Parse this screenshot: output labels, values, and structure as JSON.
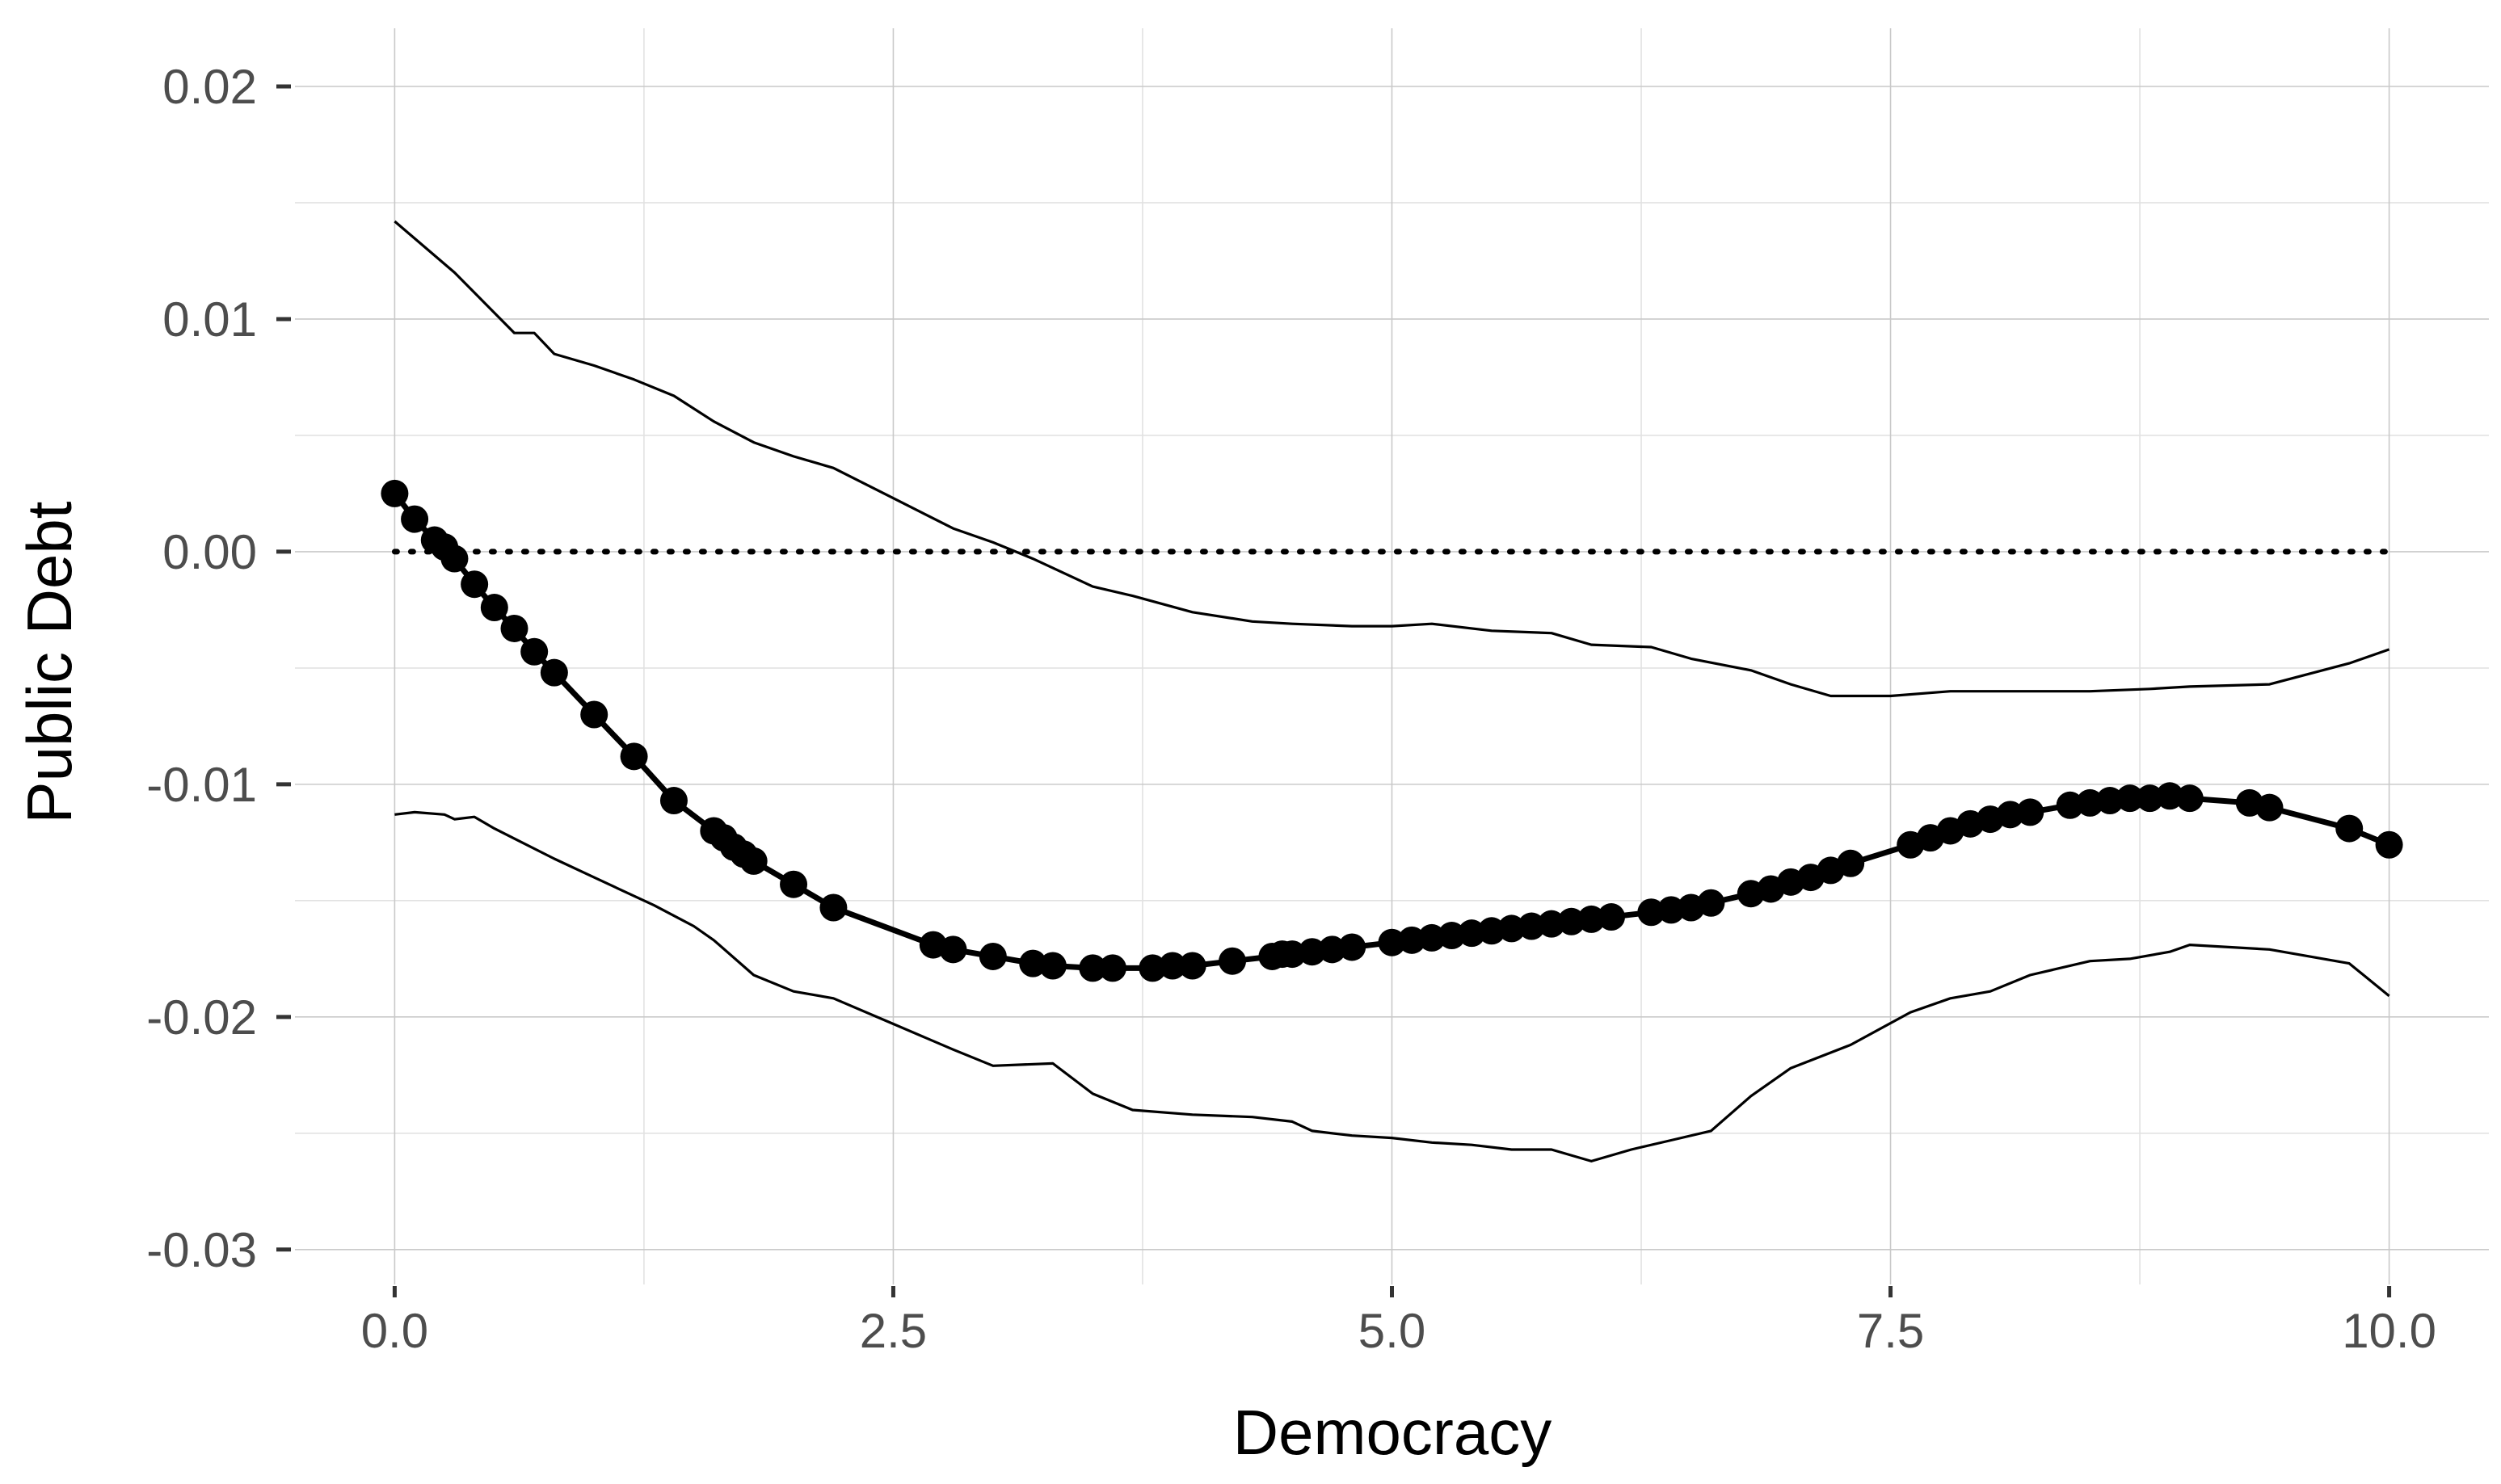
{
  "chart_data": {
    "type": "line",
    "title": "",
    "xlabel": "Democracy",
    "ylabel": "Public Debt",
    "xlim": [
      -0.5,
      10.5
    ],
    "ylim": [
      -0.0315,
      0.0225
    ],
    "x_ticks": [
      {
        "value": 0.0,
        "label": "0.0"
      },
      {
        "value": 2.5,
        "label": "2.5"
      },
      {
        "value": 5.0,
        "label": "5.0"
      },
      {
        "value": 7.5,
        "label": "7.5"
      },
      {
        "value": 10.0,
        "label": "10.0"
      }
    ],
    "y_ticks": [
      {
        "value": 0.02,
        "label": "0.02"
      },
      {
        "value": 0.01,
        "label": "0.01"
      },
      {
        "value": 0.0,
        "label": "0.00"
      },
      {
        "value": -0.01,
        "label": "-0.01"
      },
      {
        "value": -0.02,
        "label": "-0.02"
      },
      {
        "value": -0.03,
        "label": "-0.03"
      }
    ],
    "grid": true,
    "legend": "none",
    "reference_line": {
      "y": 0.0,
      "style": "dotted",
      "x_range": [
        0,
        10
      ]
    },
    "series": [
      {
        "role": "estimate",
        "style": "line-with-points",
        "x": [
          0,
          0.1,
          0.2,
          0.25,
          0.3,
          0.4,
          0.5,
          0.6,
          0.7,
          0.8,
          1.0,
          1.2,
          1.4,
          1.6,
          1.65,
          1.7,
          1.75,
          1.8,
          2.0,
          2.2,
          2.7,
          2.8,
          3.0,
          3.2,
          3.3,
          3.5,
          3.6,
          3.8,
          3.9,
          4.0,
          4.2,
          4.4,
          4.45,
          4.5,
          4.6,
          4.7,
          4.8,
          5.0,
          5.1,
          5.2,
          5.3,
          5.4,
          5.5,
          5.6,
          5.7,
          5.8,
          5.9,
          6.0,
          6.1,
          6.3,
          6.4,
          6.5,
          6.6,
          6.8,
          6.9,
          7.0,
          7.1,
          7.2,
          7.3,
          7.6,
          7.7,
          7.8,
          7.9,
          8.0,
          8.1,
          8.2,
          8.4,
          8.5,
          8.6,
          8.7,
          8.8,
          8.9,
          9.0,
          9.3,
          9.4,
          9.8,
          10.0
        ],
        "y": [
          0.0025,
          0.0014,
          0.0005,
          0.0002,
          -0.0003,
          -0.0014,
          -0.0024,
          -0.0033,
          -0.0043,
          -0.0052,
          -0.007,
          -0.0088,
          -0.0107,
          -0.012,
          -0.0123,
          -0.0127,
          -0.013,
          -0.0133,
          -0.0143,
          -0.0153,
          -0.0169,
          -0.0171,
          -0.0174,
          -0.0177,
          -0.0178,
          -0.0179,
          -0.0179,
          -0.0179,
          -0.0178,
          -0.0178,
          -0.0176,
          -0.0174,
          -0.0173,
          -0.0173,
          -0.0172,
          -0.0171,
          -0.017,
          -0.0168,
          -0.0167,
          -0.0166,
          -0.0165,
          -0.0164,
          -0.0163,
          -0.0162,
          -0.0161,
          -0.016,
          -0.0159,
          -0.0158,
          -0.0157,
          -0.0155,
          -0.0154,
          -0.0153,
          -0.0151,
          -0.0147,
          -0.0145,
          -0.0142,
          -0.014,
          -0.0137,
          -0.0134,
          -0.0126,
          -0.0123,
          -0.012,
          -0.0117,
          -0.0115,
          -0.0113,
          -0.0112,
          -0.0109,
          -0.0108,
          -0.0107,
          -0.0106,
          -0.0106,
          -0.0105,
          -0.0106,
          -0.0108,
          -0.011,
          -0.0119,
          -0.0126
        ]
      },
      {
        "role": "upper-bound",
        "style": "line",
        "x": [
          0,
          0.3,
          0.6,
          0.7,
          0.8,
          1.0,
          1.2,
          1.4,
          1.6,
          1.8,
          2.0,
          2.2,
          2.5,
          2.8,
          3.0,
          3.2,
          3.5,
          3.7,
          4.0,
          4.3,
          4.5,
          4.8,
          5.0,
          5.2,
          5.5,
          5.8,
          6.0,
          6.3,
          6.5,
          6.8,
          7.0,
          7.2,
          7.5,
          7.8,
          8.0,
          8.5,
          8.8,
          9.0,
          9.4,
          9.8,
          10.0
        ],
        "y": [
          0.0142,
          0.012,
          0.0094,
          0.0094,
          0.0085,
          0.008,
          0.0074,
          0.0067,
          0.0056,
          0.0047,
          0.0041,
          0.0036,
          0.0023,
          0.001,
          0.0004,
          -0.0003,
          -0.0015,
          -0.0019,
          -0.0026,
          -0.003,
          -0.0031,
          -0.0032,
          -0.0032,
          -0.0031,
          -0.0034,
          -0.0035,
          -0.004,
          -0.0041,
          -0.0046,
          -0.0051,
          -0.0057,
          -0.0062,
          -0.0062,
          -0.006,
          -0.006,
          -0.006,
          -0.0059,
          -0.0058,
          -0.0057,
          -0.0048,
          -0.0042
        ]
      },
      {
        "role": "lower-bound",
        "style": "line",
        "x": [
          0,
          0.1,
          0.25,
          0.3,
          0.4,
          0.5,
          0.8,
          1.0,
          1.3,
          1.5,
          1.6,
          1.8,
          2.0,
          2.2,
          2.5,
          2.8,
          3.0,
          3.3,
          3.5,
          3.7,
          4.0,
          4.3,
          4.5,
          4.6,
          4.8,
          5.0,
          5.2,
          5.4,
          5.6,
          5.8,
          6.0,
          6.2,
          6.4,
          6.6,
          6.8,
          7.0,
          7.3,
          7.6,
          7.8,
          8.0,
          8.2,
          8.5,
          8.7,
          8.9,
          9.0,
          9.4,
          9.8,
          10.0
        ],
        "y": [
          -0.0113,
          -0.0112,
          -0.0113,
          -0.0115,
          -0.0114,
          -0.0119,
          -0.0132,
          -0.014,
          -0.0152,
          -0.0161,
          -0.0167,
          -0.0182,
          -0.0189,
          -0.0192,
          -0.0203,
          -0.0214,
          -0.0221,
          -0.022,
          -0.0233,
          -0.024,
          -0.0242,
          -0.0243,
          -0.0245,
          -0.0249,
          -0.0251,
          -0.0252,
          -0.0254,
          -0.0255,
          -0.0257,
          -0.0257,
          -0.0262,
          -0.0257,
          -0.0253,
          -0.0249,
          -0.0234,
          -0.0222,
          -0.0212,
          -0.0198,
          -0.0192,
          -0.0189,
          -0.0182,
          -0.0176,
          -0.0175,
          -0.0172,
          -0.0169,
          -0.0171,
          -0.0177,
          -0.0191
        ]
      }
    ]
  }
}
